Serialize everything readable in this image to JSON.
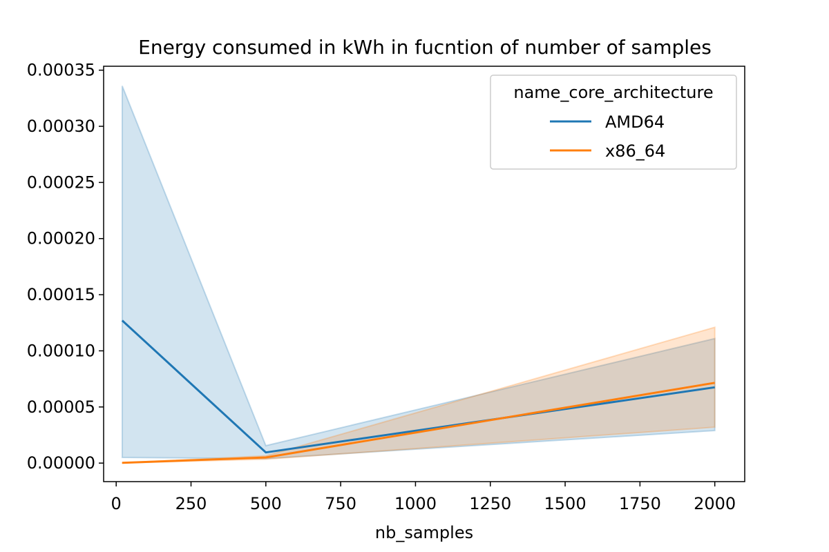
{
  "chart_data": {
    "type": "line",
    "title": "Energy consumed in kWh in fucntion of number of samples",
    "xlabel": "nb_samples",
    "ylabel": "",
    "xlim": [
      -42,
      2100
    ],
    "ylim": [
      -1.65e-05,
      0.0003535
    ],
    "x_ticks": [
      0,
      250,
      500,
      750,
      1000,
      1250,
      1500,
      1750,
      2000
    ],
    "x_tick_labels": [
      "0",
      "250",
      "500",
      "750",
      "1000",
      "1250",
      "1500",
      "1750",
      "2000"
    ],
    "y_ticks": [
      0,
      5e-05,
      0.0001,
      0.00015,
      0.0002,
      0.00025,
      0.0003,
      0.00035
    ],
    "y_tick_labels": [
      "0.00000",
      "0.00005",
      "0.00010",
      "0.00015",
      "0.00020",
      "0.00025",
      "0.00030",
      "0.00035"
    ],
    "grid": false,
    "legend": {
      "title": "name_core_architecture",
      "placement": "top-right"
    },
    "x": [
      20,
      500,
      2000
    ],
    "series": [
      {
        "name": "AMD64",
        "color": "#1f77b4",
        "values": [
          0.000127,
          9.5e-06,
          6.75e-05
        ],
        "ci_low": [
          5e-06,
          4e-06,
          2.9e-05
        ],
        "ci_high": [
          0.000336,
          1.55e-05,
          0.000111
        ]
      },
      {
        "name": "x86_64",
        "color": "#ff7f0e",
        "values": [
          2e-07,
          5e-06,
          7.15e-05
        ],
        "ci_low": [
          1e-07,
          3.5e-06,
          3.2e-05
        ],
        "ci_high": [
          3e-07,
          6.5e-06,
          0.000121
        ]
      }
    ]
  }
}
